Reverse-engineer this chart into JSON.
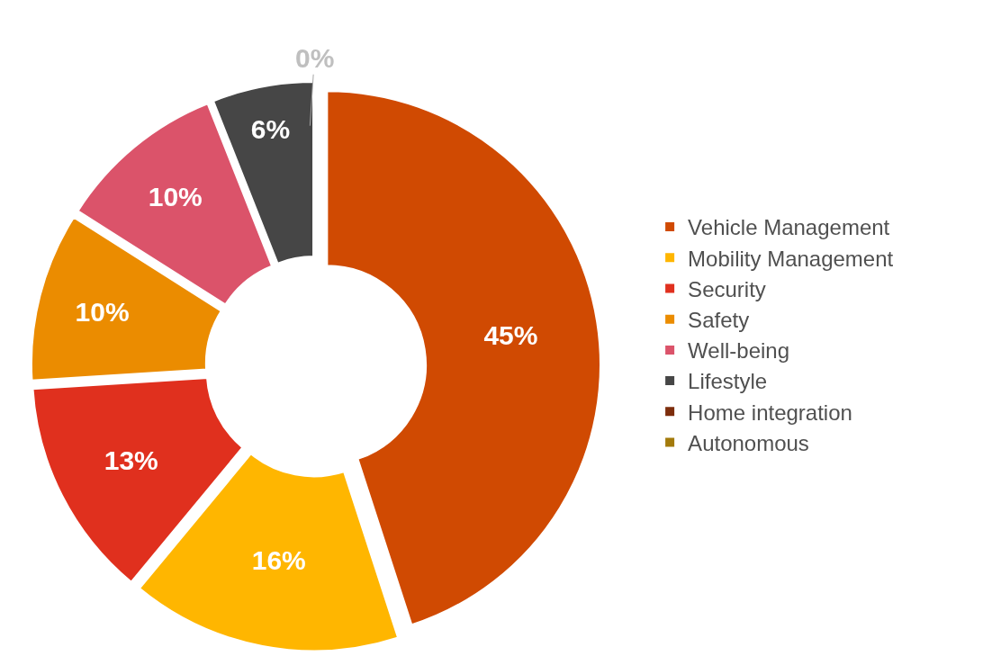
{
  "chart_data": {
    "type": "donut",
    "categories": [
      "Vehicle Management",
      "Mobility Management",
      "Security",
      "Safety",
      "Well-being",
      "Lifestyle",
      "Home integration",
      "Autonomous"
    ],
    "values": [
      45,
      16,
      13,
      10,
      10,
      6,
      0,
      0
    ],
    "colors": [
      "#d04a02",
      "#ffb600",
      "#e0301e",
      "#eb8c00",
      "#db536a",
      "#464646",
      "#7d2d0c",
      "#a37a0b"
    ],
    "value_labels": [
      "45%",
      "16%",
      "13%",
      "10%",
      "10%",
      "6%",
      "0%",
      null
    ],
    "legend": "right"
  }
}
